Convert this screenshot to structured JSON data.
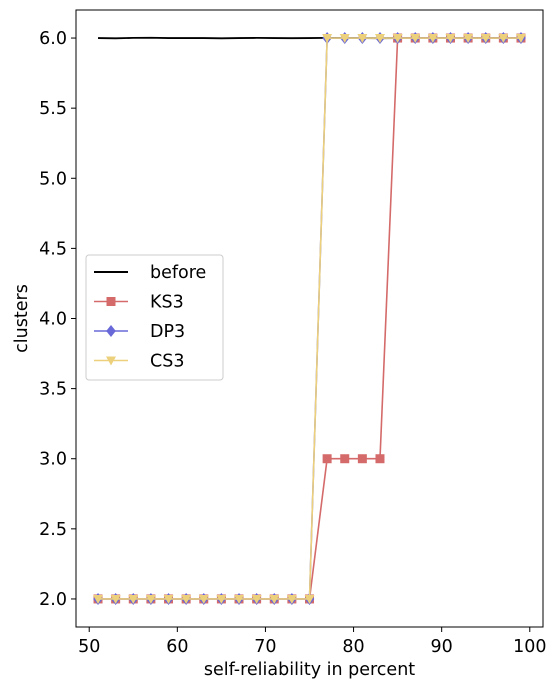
{
  "chart_data": {
    "type": "line",
    "xlabel": "self-reliability in percent",
    "ylabel": "clusters",
    "xlim": [
      48.5,
      101.5
    ],
    "ylim": [
      1.8,
      6.2
    ],
    "xticks": [
      50,
      60,
      70,
      80,
      90,
      100
    ],
    "yticks": [
      2.0,
      2.5,
      3.0,
      3.5,
      4.0,
      4.5,
      5.0,
      5.5,
      6.0
    ],
    "xtick_labels": [
      "50",
      "60",
      "70",
      "80",
      "90",
      "100"
    ],
    "ytick_labels": [
      "2.0",
      "2.5",
      "3.0",
      "3.5",
      "4.0",
      "4.5",
      "5.0",
      "5.5",
      "6.0"
    ],
    "grid": false,
    "legend_position": "center-left",
    "x": [
      51,
      53,
      55,
      57,
      59,
      61,
      63,
      65,
      67,
      69,
      71,
      73,
      75,
      77,
      79,
      81,
      83,
      85,
      87,
      89,
      91,
      93,
      95,
      97,
      99
    ],
    "series": [
      {
        "name": "before",
        "color": "#000000",
        "marker": "none",
        "values": [
          6.0,
          5.998,
          6.001,
          6.002,
          6.0,
          6.0,
          6.0,
          5.998,
          6.0,
          6.001,
          6.0,
          5.999,
          6.0,
          6.001,
          6.0,
          6.0,
          5.999,
          6.0,
          6.0,
          6.0,
          6.0,
          6.0,
          6.0,
          6.0,
          6.0
        ]
      },
      {
        "name": "KS3",
        "color": "#d46a6a",
        "marker": "square",
        "values": [
          2,
          2,
          2,
          2,
          2,
          2,
          2,
          2,
          2,
          2,
          2,
          2,
          2,
          3,
          3,
          3,
          3,
          6,
          6,
          6,
          6,
          6,
          6,
          6,
          6
        ]
      },
      {
        "name": "DP3",
        "color": "#6868d8",
        "marker": "diamond",
        "values": [
          2,
          2,
          2,
          2,
          2,
          2,
          2,
          2,
          2,
          2,
          2,
          2,
          2,
          6,
          6,
          6,
          6,
          6,
          6,
          6,
          6,
          6,
          6,
          6,
          6
        ]
      },
      {
        "name": "CS3",
        "color": "#ecd07c",
        "marker": "triangle-down",
        "values": [
          2,
          2,
          2,
          2,
          2,
          2,
          2,
          2,
          2,
          2,
          2,
          2,
          2,
          6,
          6,
          6,
          6,
          6,
          6,
          6,
          6,
          6,
          6,
          6,
          6
        ]
      }
    ]
  }
}
